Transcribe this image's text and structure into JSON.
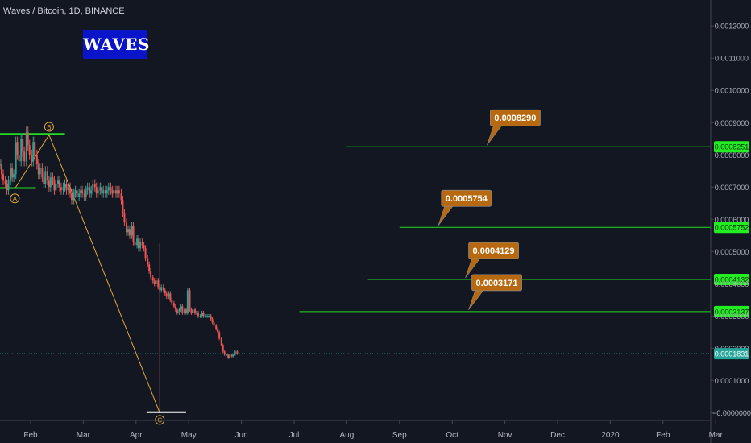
{
  "header": {
    "title": "Waves / Bitcoin, 1D, BINANCE"
  },
  "logo": {
    "text": "WAVES"
  },
  "colors": {
    "background": "#131722",
    "up": "#26a69a",
    "down": "#ef5350",
    "level": "#22dd22",
    "wave": "#e0a63a",
    "callout": "#b8690f",
    "current": "#26a69a",
    "axis_text": "#b2b5be"
  },
  "chart_data": {
    "type": "candlestick",
    "title": "Waves / Bitcoin, 1D, BINANCE",
    "y_axis": {
      "ticks": [
        0.0012,
        0.0011,
        0.001,
        0.0009,
        0.0008,
        0.0007,
        0.0006,
        0.0005,
        0.0004,
        0.0003,
        0.0002,
        0.0001,
        0
      ],
      "tick_labels": [
        "0.0012000",
        "0.0011000",
        "0.0010000",
        "0.0009000",
        "0.0008000",
        "0.0007000",
        "0.0006000",
        "0.0005000",
        "0.0004000",
        "0.0003000",
        "0.0002000",
        "0.0001000",
        "−0.0000000"
      ],
      "range": [
        -4e-06,
        0.001248
      ]
    },
    "x_axis": {
      "labels": [
        "Feb",
        "Mar",
        "Apr",
        "May",
        "Jun",
        "Jul",
        "Aug",
        "Sep",
        "Oct",
        "Nov",
        "Dec",
        "2020",
        "Feb",
        "Mar"
      ]
    },
    "current_price": {
      "value": 0.0001831,
      "label": "0.0001831"
    },
    "levels": [
      {
        "value": 0.0008251,
        "axis_label": "0.0008251",
        "callout": "0.0008290",
        "start_month": 6
      },
      {
        "value": 0.0005752,
        "axis_label": "0.0005752",
        "callout": "0.0005754",
        "start_month": 7
      },
      {
        "value": 0.0004132,
        "axis_label": "0.0004132",
        "callout": "0.0004129",
        "start_month": 6.4
      },
      {
        "value": 0.0003137,
        "axis_label": "0.0003137",
        "callout": "0.0003171",
        "start_month": 5.1
      }
    ],
    "waves": [
      {
        "label": "A",
        "month": -0.3,
        "value": 0.000695
      },
      {
        "label": "B",
        "month": 0.35,
        "value": 0.000862
      },
      {
        "label": "C",
        "month": 2.45,
        "value": 0.0
      }
    ],
    "range_lines": [
      {
        "value": 0.000865,
        "month_from": -0.6,
        "month_to": 0.65
      },
      {
        "value": 0.000697,
        "month_from": -0.6,
        "month_to": 0.1
      },
      {
        "value": 1.5e-06,
        "month_from": 2.2,
        "month_to": 2.95
      }
    ],
    "series": [
      {
        "name": "",
        "points": [
          [
            -0.58,
            0.00077
          ],
          [
            -0.55,
            0.00074
          ],
          [
            -0.52,
            0.00072
          ],
          [
            -0.48,
            0.00071
          ],
          [
            -0.45,
            0.00069
          ],
          [
            -0.42,
            0.00072
          ],
          [
            -0.38,
            0.00076
          ],
          [
            -0.35,
            0.00073
          ],
          [
            -0.32,
            0.00074
          ],
          [
            -0.28,
            0.00084
          ],
          [
            -0.25,
            0.0008
          ],
          [
            -0.22,
            0.00078
          ],
          [
            -0.18,
            0.00085
          ],
          [
            -0.15,
            0.00081
          ],
          [
            -0.12,
            0.00078
          ],
          [
            -0.08,
            0.00087
          ],
          [
            -0.05,
            0.00083
          ],
          [
            -0.02,
            0.0008
          ],
          [
            0.02,
            0.00078
          ],
          [
            0.05,
            0.00084
          ],
          [
            0.08,
            0.0008
          ],
          [
            0.12,
            0.00077
          ],
          [
            0.15,
            0.00074
          ],
          [
            0.18,
            0.00076
          ],
          [
            0.22,
            0.00073
          ],
          [
            0.25,
            0.00071
          ],
          [
            0.28,
            0.00075
          ],
          [
            0.32,
            0.00072
          ],
          [
            0.35,
            0.0007
          ],
          [
            0.38,
            0.00073
          ],
          [
            0.42,
            0.00072
          ],
          [
            0.45,
            0.00069
          ],
          [
            0.48,
            0.00071
          ],
          [
            0.52,
            0.00072
          ],
          [
            0.55,
            0.0007
          ],
          [
            0.58,
            0.00069
          ],
          [
            0.62,
            0.0007
          ],
          [
            0.65,
            0.00071
          ],
          [
            0.68,
            0.00069
          ],
          [
            0.72,
            0.0007
          ],
          [
            0.75,
            0.00068
          ],
          [
            0.78,
            0.00066
          ],
          [
            0.82,
            0.00068
          ],
          [
            0.85,
            0.00069
          ],
          [
            0.88,
            0.00067
          ],
          [
            0.92,
            0.00068
          ],
          [
            0.95,
            0.00069
          ],
          [
            0.98,
            0.00068
          ],
          [
            1.02,
            0.00067
          ],
          [
            1.05,
            0.00069
          ],
          [
            1.08,
            0.0007
          ],
          [
            1.12,
            0.00068
          ],
          [
            1.15,
            0.00069
          ],
          [
            1.18,
            0.00071
          ],
          [
            1.22,
            0.0007
          ],
          [
            1.25,
            0.00068
          ],
          [
            1.28,
            0.00069
          ],
          [
            1.32,
            0.0007
          ],
          [
            1.35,
            0.00068
          ],
          [
            1.38,
            0.00069
          ],
          [
            1.42,
            0.00068
          ],
          [
            1.45,
            0.00069
          ],
          [
            1.48,
            0.0007
          ],
          [
            1.52,
            0.00069
          ],
          [
            1.55,
            0.00068
          ],
          [
            1.58,
            0.00069
          ],
          [
            1.62,
            0.00068
          ],
          [
            1.65,
            0.00069
          ],
          [
            1.68,
            0.00068
          ],
          [
            1.72,
            0.00066
          ],
          [
            1.75,
            0.00062
          ],
          [
            1.78,
            0.00059
          ],
          [
            1.82,
            0.00056
          ],
          [
            1.85,
            0.00057
          ],
          [
            1.88,
            0.00055
          ],
          [
            1.92,
            0.00058
          ],
          [
            1.95,
            0.00053
          ],
          [
            1.98,
            0.00052
          ],
          [
            2.02,
            0.00054
          ],
          [
            2.05,
            0.00051
          ],
          [
            2.08,
            0.00053
          ],
          [
            2.12,
            0.00052
          ],
          [
            2.15,
            0.00051
          ],
          [
            2.18,
            0.00048
          ],
          [
            2.22,
            0.00046
          ],
          [
            2.25,
            0.00044
          ],
          [
            2.28,
            0.00042
          ],
          [
            2.32,
            0.00041
          ],
          [
            2.35,
            0.0004
          ],
          [
            2.38,
            0.00041
          ],
          [
            2.42,
            0.00039
          ],
          [
            2.45,
            0.00038
          ],
          [
            2.48,
            0.00039
          ],
          [
            2.52,
            0.00038
          ],
          [
            2.55,
            0.00037
          ],
          [
            2.58,
            0.00036
          ],
          [
            2.62,
            0.00037
          ],
          [
            2.65,
            0.00035
          ],
          [
            2.68,
            0.00034
          ],
          [
            2.72,
            0.00033
          ],
          [
            2.75,
            0.00032
          ],
          [
            2.78,
            0.00031
          ],
          [
            2.82,
            0.00032
          ],
          [
            2.85,
            0.00033
          ],
          [
            2.88,
            0.00031
          ],
          [
            2.92,
            0.00032
          ],
          [
            2.95,
            0.00031
          ],
          [
            2.98,
            0.00038
          ],
          [
            3.02,
            0.00032
          ],
          [
            3.05,
            0.00031
          ],
          [
            3.08,
            0.00032
          ],
          [
            3.12,
            0.00031
          ],
          [
            3.15,
            0.00031
          ],
          [
            3.18,
            0.0003
          ],
          [
            3.22,
            0.0003
          ],
          [
            3.25,
            0.00031
          ],
          [
            3.28,
            0.0003
          ],
          [
            3.32,
            0.0003
          ],
          [
            3.35,
            0.0003
          ],
          [
            3.38,
            0.0003
          ],
          [
            3.42,
            0.00029
          ],
          [
            3.45,
            0.00028
          ],
          [
            3.48,
            0.00027
          ],
          [
            3.52,
            0.00026
          ],
          [
            3.55,
            0.00025
          ],
          [
            3.58,
            0.00023
          ],
          [
            3.62,
            0.00021
          ],
          [
            3.65,
            0.00019
          ],
          [
            3.68,
            0.00018
          ],
          [
            3.72,
            0.00018
          ],
          [
            3.75,
            0.00017
          ],
          [
            3.78,
            0.00018
          ],
          [
            3.82,
            0.000175
          ],
          [
            3.85,
            0.00018
          ],
          [
            3.88,
            0.00019
          ],
          [
            3.92,
            0.0001831
          ]
        ]
      }
    ],
    "grid": false
  }
}
